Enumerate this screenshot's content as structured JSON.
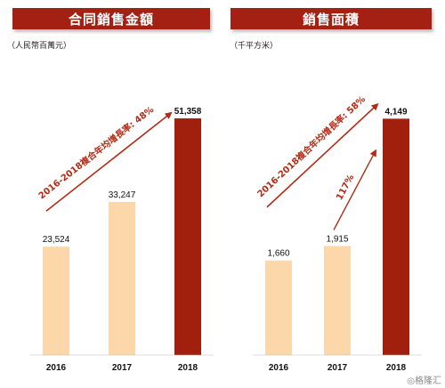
{
  "colors": {
    "header_bg": "#A32012",
    "bar_light": "#FCD7AA",
    "bar_dark": "#A11F0D",
    "arrow": "#B52A14",
    "annotation_text": "#B52A14"
  },
  "chart_data": [
    {
      "type": "bar",
      "title": "合同銷售金額",
      "unit": "（人民幣百萬元）",
      "categories": [
        "2016",
        "2017",
        "2018"
      ],
      "values": [
        23524,
        33247,
        51358
      ],
      "value_labels": [
        "23,524",
        "33,247",
        "51,358"
      ],
      "ylim": [
        0,
        56000
      ],
      "annotations": [
        "2016-2018複合年均增長率: 48%"
      ]
    },
    {
      "type": "bar",
      "title": "銷售面積",
      "unit": "（千平方米）",
      "categories": [
        "2016",
        "2017",
        "2018"
      ],
      "values": [
        1660,
        1915,
        4149
      ],
      "value_labels": [
        "1,660",
        "1,915",
        "4,149"
      ],
      "ylim": [
        0,
        4530
      ],
      "annotations": [
        "2016-2018複合年均增長率: 58%",
        "117%"
      ]
    }
  ],
  "watermark": "格隆汇"
}
